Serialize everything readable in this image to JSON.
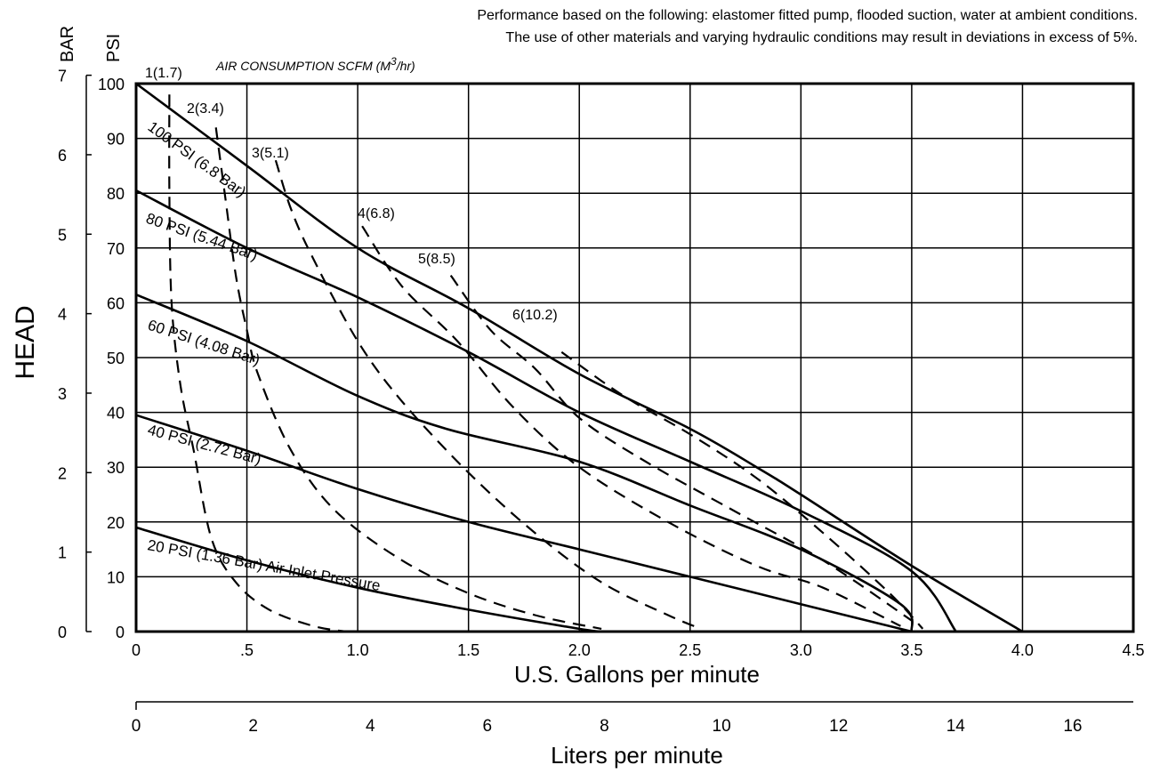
{
  "notes": {
    "line1": "Performance based on the following: elastomer fitted pump, flooded suction, water at ambient conditions.",
    "line2": "The use of other materials and varying hydraulic conditions may result in deviations in excess of 5%."
  },
  "units": {
    "bar": "BAR",
    "psi": "PSI"
  },
  "air_title": {
    "main": "AIR CONSUMPTION  SCFM (M",
    "sup": "3",
    "end": "/hr)"
  },
  "chart_data": {
    "type": "line",
    "ylabel": "HEAD",
    "xlabel": "U.S. Gallons per minute",
    "x2label": "Liters per minute",
    "xlim": [
      0,
      4.5
    ],
    "ylim": [
      0,
      100
    ],
    "grid": true,
    "x_ticks": [
      {
        "v": 0,
        "label": "0"
      },
      {
        "v": 0.5,
        "label": ".5"
      },
      {
        "v": 1.0,
        "label": "1.0"
      },
      {
        "v": 1.5,
        "label": "1.5"
      },
      {
        "v": 2.0,
        "label": "2.0"
      },
      {
        "v": 2.5,
        "label": "2.5"
      },
      {
        "v": 3.0,
        "label": "3.0"
      },
      {
        "v": 3.5,
        "label": "3.5"
      },
      {
        "v": 4.0,
        "label": "4.0"
      },
      {
        "v": 4.5,
        "label": "4.5"
      }
    ],
    "psi_ticks": [
      "0",
      "10",
      "20",
      "30",
      "40",
      "50",
      "60",
      "70",
      "80",
      "90",
      "100"
    ],
    "bar_ticks": [
      "0",
      "1",
      "2",
      "3",
      "4",
      "5",
      "6",
      "7"
    ],
    "lpm_ticks": [
      "0",
      "2",
      "4",
      "6",
      "8",
      "10",
      "12",
      "14",
      "16"
    ],
    "pressure_curves": [
      {
        "label": "100 PSI (6.8 Bar)",
        "points": [
          [
            0,
            100
          ],
          [
            0.5,
            85
          ],
          [
            1.0,
            70
          ],
          [
            1.5,
            59
          ],
          [
            2.0,
            47
          ],
          [
            2.5,
            37
          ],
          [
            2.8,
            30
          ],
          [
            3.0,
            25
          ],
          [
            3.5,
            12
          ],
          [
            4.0,
            0
          ]
        ]
      },
      {
        "label": "80 PSI (5.44 Bar)",
        "points": [
          [
            0,
            80.5
          ],
          [
            0.5,
            70
          ],
          [
            1.0,
            61
          ],
          [
            1.5,
            51
          ],
          [
            2.0,
            40
          ],
          [
            2.5,
            31
          ],
          [
            3.0,
            22
          ],
          [
            3.5,
            11
          ],
          [
            3.7,
            0
          ]
        ]
      },
      {
        "label": "60 PSI (4.08 Bar)",
        "points": [
          [
            0,
            61.5
          ],
          [
            0.5,
            53
          ],
          [
            1.0,
            43
          ],
          [
            1.4,
            37
          ],
          [
            2.0,
            31
          ],
          [
            2.5,
            23
          ],
          [
            3.0,
            15
          ],
          [
            3.45,
            5
          ],
          [
            3.5,
            0
          ]
        ]
      },
      {
        "label": "40 PSI (2.72 Bar)",
        "points": [
          [
            0,
            39.5
          ],
          [
            0.5,
            33
          ],
          [
            1.0,
            26
          ],
          [
            1.5,
            20
          ],
          [
            2.0,
            15
          ],
          [
            2.5,
            10
          ],
          [
            3.0,
            5
          ],
          [
            3.5,
            0
          ]
        ]
      },
      {
        "label": "20 PSI (1.36 Bar) Air Inlet Pressure",
        "points": [
          [
            0,
            19
          ],
          [
            0.5,
            13
          ],
          [
            1.0,
            8
          ],
          [
            1.5,
            4
          ],
          [
            2.0,
            0.5
          ],
          [
            2.1,
            0
          ]
        ]
      }
    ],
    "air_curves": [
      {
        "label": "1(1.7)",
        "points": [
          [
            0.15,
            98
          ],
          [
            0.15,
            80
          ],
          [
            0.16,
            60
          ],
          [
            0.2,
            45
          ],
          [
            0.26,
            33
          ],
          [
            0.34,
            17
          ],
          [
            0.45,
            9
          ],
          [
            0.6,
            4
          ],
          [
            0.8,
            1
          ],
          [
            0.95,
            0
          ]
        ]
      },
      {
        "label": "2(3.4)",
        "points": [
          [
            0.36,
            92
          ],
          [
            0.4,
            80
          ],
          [
            0.45,
            65
          ],
          [
            0.5,
            55
          ],
          [
            0.55,
            47
          ],
          [
            0.7,
            33
          ],
          [
            0.9,
            22
          ],
          [
            1.2,
            13
          ],
          [
            1.5,
            7
          ],
          [
            1.8,
            3
          ],
          [
            2.1,
            0.5
          ]
        ]
      },
      {
        "label": "3(5.1)",
        "points": [
          [
            0.63,
            86
          ],
          [
            0.7,
            77
          ],
          [
            0.8,
            68
          ],
          [
            1.0,
            53
          ],
          [
            1.2,
            42
          ],
          [
            1.5,
            29
          ],
          [
            1.8,
            18
          ],
          [
            2.1,
            9
          ],
          [
            2.4,
            3
          ],
          [
            2.55,
            0.5
          ]
        ]
      },
      {
        "label": "4(6.8)",
        "points": [
          [
            1.02,
            74
          ],
          [
            1.2,
            63
          ],
          [
            1.45,
            53
          ],
          [
            1.7,
            41
          ],
          [
            2.0,
            30
          ],
          [
            2.4,
            20
          ],
          [
            2.8,
            12
          ],
          [
            3.1,
            8
          ],
          [
            3.45,
            1
          ]
        ]
      },
      {
        "label": "5(8.5)",
        "points": [
          [
            1.42,
            65
          ],
          [
            1.6,
            55
          ],
          [
            1.8,
            48
          ],
          [
            2.0,
            39
          ],
          [
            2.3,
            31
          ],
          [
            2.7,
            22
          ],
          [
            3.1,
            13
          ],
          [
            3.5,
            2
          ]
        ]
      },
      {
        "label": "6(10.2)",
        "points": [
          [
            1.92,
            51
          ],
          [
            2.2,
            43
          ],
          [
            2.5,
            36
          ],
          [
            2.8,
            28
          ],
          [
            3.1,
            18
          ],
          [
            3.4,
            7
          ],
          [
            3.55,
            0.5
          ]
        ]
      }
    ]
  }
}
